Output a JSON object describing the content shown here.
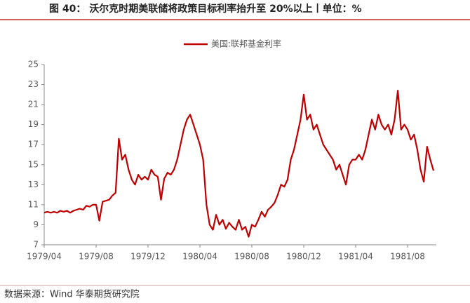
{
  "chart_data": {
    "type": "line",
    "title": "图 40： 沃尔克时期美联储将政策目标利率抬升至 20%以上丨单位：%",
    "source": "数据来源：Wind  华泰期货研究院",
    "categories": [
      "1979/04",
      null,
      null,
      null,
      null,
      null,
      null,
      null,
      null,
      null,
      null,
      null,
      null,
      null,
      null,
      null,
      "1979/08",
      null,
      null,
      null,
      null,
      null,
      null,
      null,
      null,
      null,
      null,
      null,
      null,
      null,
      null,
      null,
      "1979/12",
      null,
      null,
      null,
      null,
      null,
      null,
      null,
      null,
      null,
      null,
      null,
      null,
      null,
      null,
      null,
      "1980/04",
      null,
      null,
      null,
      null,
      null,
      null,
      null,
      null,
      null,
      null,
      null,
      null,
      null,
      null,
      null,
      "1980/08",
      null,
      null,
      null,
      null,
      null,
      null,
      null,
      null,
      null,
      null,
      null,
      null,
      null,
      null,
      null,
      "1980/12",
      null,
      null,
      null,
      null,
      null,
      null,
      null,
      null,
      null,
      null,
      null,
      null,
      null,
      null,
      null,
      "1981/04",
      null,
      null,
      null,
      null,
      null,
      null,
      null,
      null,
      null,
      null,
      null,
      null,
      null,
      null,
      null,
      "1981/08",
      null,
      null,
      null,
      null,
      null,
      null,
      null,
      null
    ],
    "series": [
      {
        "name": "美国:联邦基金利率",
        "color": "#c00000",
        "values": [
          10.2,
          10.3,
          10.2,
          10.3,
          10.2,
          10.4,
          10.3,
          10.4,
          10.2,
          10.4,
          10.5,
          10.6,
          10.5,
          10.9,
          10.8,
          11.0,
          11.0,
          9.4,
          11.3,
          11.4,
          11.5,
          11.9,
          12.2,
          17.6,
          15.5,
          16.0,
          14.5,
          13.5,
          13.0,
          14.0,
          13.5,
          13.8,
          13.5,
          14.5,
          14.0,
          13.8,
          11.5,
          13.6,
          14.2,
          14.0,
          14.5,
          15.5,
          17.0,
          18.5,
          19.5,
          20.0,
          19.0,
          18.0,
          17.0,
          15.5,
          11.0,
          9.0,
          8.5,
          10.0,
          9.0,
          9.5,
          8.6,
          9.2,
          8.8,
          8.5,
          9.5,
          8.5,
          8.8,
          7.8,
          9.0,
          8.8,
          9.5,
          10.3,
          9.8,
          10.5,
          10.8,
          11.2,
          12.0,
          13.0,
          12.8,
          13.5,
          15.5,
          16.5,
          18.0,
          19.5,
          22.0,
          19.5,
          20.0,
          18.5,
          19.0,
          18.0,
          17.0,
          16.5,
          16.0,
          15.5,
          14.5,
          15.0,
          14.0,
          13.0,
          15.0,
          15.5,
          15.5,
          16.0,
          15.5,
          16.5,
          18.0,
          19.5,
          18.5,
          20.0,
          19.0,
          18.5,
          19.0,
          18.0,
          19.5,
          22.4,
          18.5,
          19.0,
          18.5,
          17.5,
          18.0,
          16.5,
          14.5,
          13.3,
          16.8,
          15.5,
          14.4
        ]
      }
    ],
    "ylim": [
      7,
      25
    ],
    "yticks": [
      7,
      9,
      11,
      13,
      15,
      17,
      19,
      21,
      23,
      25
    ],
    "legend": "top",
    "grid": false
  }
}
